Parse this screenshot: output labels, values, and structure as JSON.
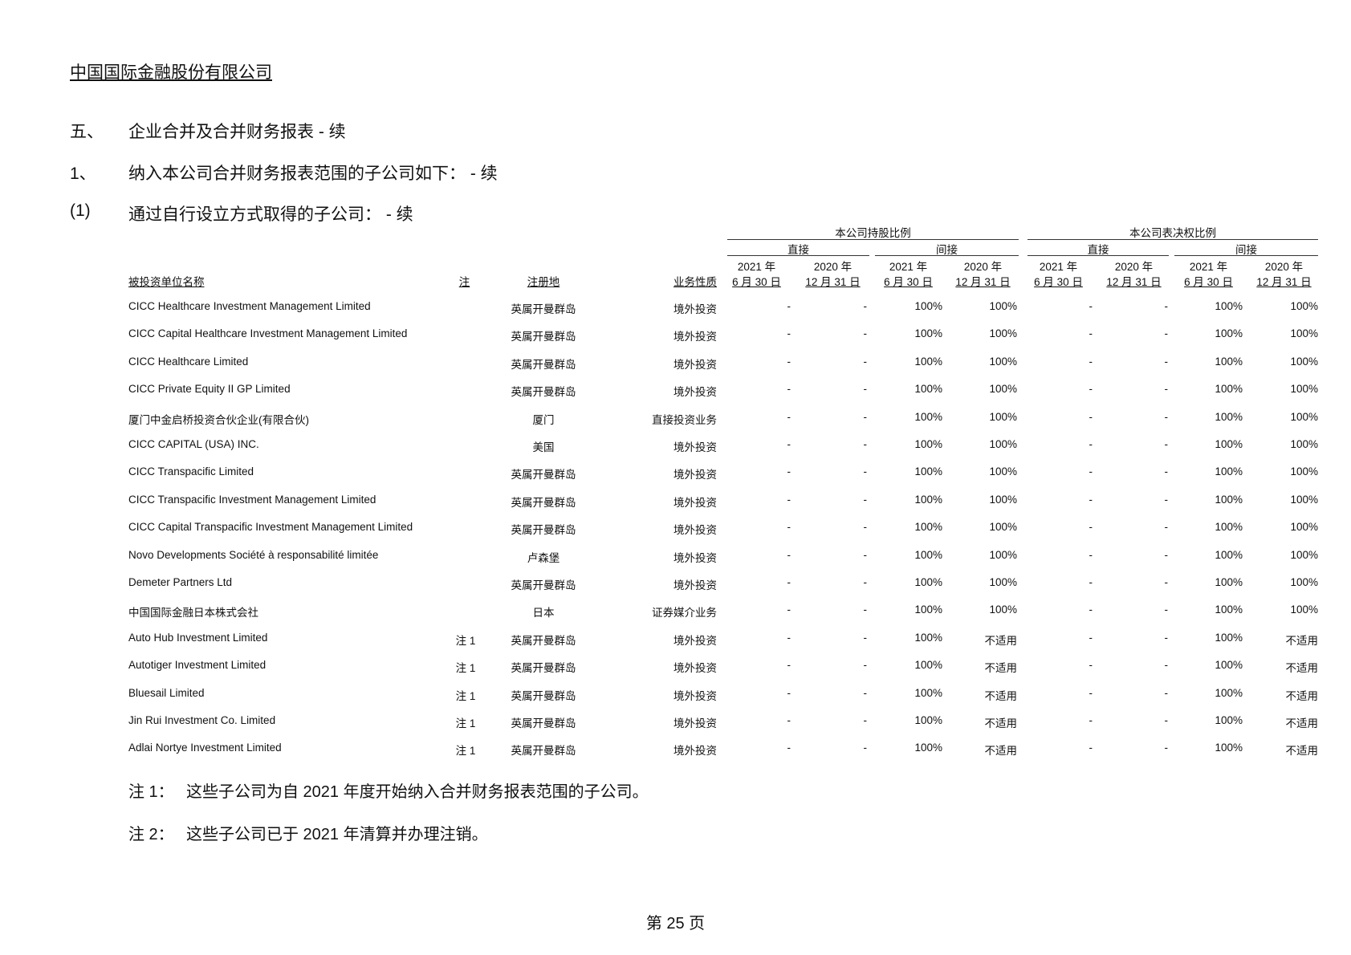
{
  "company": "中国国际金融股份有限公司",
  "sections": [
    {
      "num": "五、",
      "text": "企业合并及合并财务报表 - 续"
    },
    {
      "num": "1、",
      "text": "纳入本公司合并财务报表范围的子公司如下： - 续"
    },
    {
      "num": "(1)",
      "text": "通过自行设立方式取得的子公司： - 续"
    }
  ],
  "table": {
    "group_headers": [
      "本公司持股比例",
      "本公司表决权比例"
    ],
    "sub_headers": [
      "直接",
      "间接",
      "直接",
      "间接"
    ],
    "date_headers": [
      {
        "year": "2021 年",
        "date": "6 月 30 日"
      },
      {
        "year": "2020 年",
        "date": "12 月 31 日"
      },
      {
        "year": "2021 年",
        "date": "6 月 30 日"
      },
      {
        "year": "2020 年",
        "date": "12 月 31 日"
      },
      {
        "year": "2021 年",
        "date": "6 月 30 日"
      },
      {
        "year": "2020 年",
        "date": "12 月 31 日"
      },
      {
        "year": "2021 年",
        "date": "6 月 30 日"
      },
      {
        "year": "2020 年",
        "date": "12 月 31 日"
      }
    ],
    "col_name": "被投资单位名称",
    "col_note": "注",
    "col_place": "注册地",
    "col_business": "业务性质",
    "rows": [
      {
        "name": "CICC Healthcare Investment Management Limited",
        "note": "",
        "place": "英属开曼群岛",
        "business": "境外投资",
        "values": [
          "-",
          "-",
          "100%",
          "100%",
          "-",
          "-",
          "100%",
          "100%"
        ]
      },
      {
        "name": "CICC Capital Healthcare Investment Management Limited",
        "note": "",
        "place": "英属开曼群岛",
        "business": "境外投资",
        "values": [
          "-",
          "-",
          "100%",
          "100%",
          "-",
          "-",
          "100%",
          "100%"
        ]
      },
      {
        "name": "CICC Healthcare Limited",
        "note": "",
        "place": "英属开曼群岛",
        "business": "境外投资",
        "values": [
          "-",
          "-",
          "100%",
          "100%",
          "-",
          "-",
          "100%",
          "100%"
        ]
      },
      {
        "name": "CICC Private Equity II GP Limited",
        "note": "",
        "place": "英属开曼群岛",
        "business": "境外投资",
        "values": [
          "-",
          "-",
          "100%",
          "100%",
          "-",
          "-",
          "100%",
          "100%"
        ]
      },
      {
        "name": "厦门中金启桥投资合伙企业(有限合伙)",
        "note": "",
        "place": "厦门",
        "business": "直接投资业务",
        "values": [
          "-",
          "-",
          "100%",
          "100%",
          "-",
          "-",
          "100%",
          "100%"
        ]
      },
      {
        "name": "CICC CAPITAL (USA) INC.",
        "note": "",
        "place": "美国",
        "business": "境外投资",
        "values": [
          "-",
          "-",
          "100%",
          "100%",
          "-",
          "-",
          "100%",
          "100%"
        ]
      },
      {
        "name": "CICC Transpacific Limited",
        "note": "",
        "place": "英属开曼群岛",
        "business": "境外投资",
        "values": [
          "-",
          "-",
          "100%",
          "100%",
          "-",
          "-",
          "100%",
          "100%"
        ]
      },
      {
        "name": "CICC Transpacific Investment Management Limited",
        "note": "",
        "place": "英属开曼群岛",
        "business": "境外投资",
        "values": [
          "-",
          "-",
          "100%",
          "100%",
          "-",
          "-",
          "100%",
          "100%"
        ]
      },
      {
        "name": "CICC Capital Transpacific Investment Management Limited",
        "note": "",
        "place": "英属开曼群岛",
        "business": "境外投资",
        "values": [
          "-",
          "-",
          "100%",
          "100%",
          "-",
          "-",
          "100%",
          "100%"
        ]
      },
      {
        "name": "Novo Developments Société à responsabilité limitée",
        "note": "",
        "place": "卢森堡",
        "business": "境外投资",
        "values": [
          "-",
          "-",
          "100%",
          "100%",
          "-",
          "-",
          "100%",
          "100%"
        ]
      },
      {
        "name": "Demeter Partners Ltd",
        "note": "",
        "place": "英属开曼群岛",
        "business": "境外投资",
        "values": [
          "-",
          "-",
          "100%",
          "100%",
          "-",
          "-",
          "100%",
          "100%"
        ]
      },
      {
        "name": "中国国际金融日本株式会社",
        "note": "",
        "place": "日本",
        "business": "证券媒介业务",
        "values": [
          "-",
          "-",
          "100%",
          "100%",
          "-",
          "-",
          "100%",
          "100%"
        ]
      },
      {
        "name": "Auto Hub Investment Limited",
        "note": "注 1",
        "place": "英属开曼群岛",
        "business": "境外投资",
        "values": [
          "-",
          "-",
          "100%",
          "不适用",
          "-",
          "-",
          "100%",
          "不适用"
        ]
      },
      {
        "name": "Autotiger Investment Limited",
        "note": "注 1",
        "place": "英属开曼群岛",
        "business": "境外投资",
        "values": [
          "-",
          "-",
          "100%",
          "不适用",
          "-",
          "-",
          "100%",
          "不适用"
        ]
      },
      {
        "name": "Bluesail Limited",
        "note": "注 1",
        "place": "英属开曼群岛",
        "business": "境外投资",
        "values": [
          "-",
          "-",
          "100%",
          "不适用",
          "-",
          "-",
          "100%",
          "不适用"
        ]
      },
      {
        "name": "Jin Rui Investment Co. Limited",
        "note": "注 1",
        "place": "英属开曼群岛",
        "business": "境外投资",
        "values": [
          "-",
          "-",
          "100%",
          "不适用",
          "-",
          "-",
          "100%",
          "不适用"
        ]
      },
      {
        "name": "Adlai Nortye Investment Limited",
        "note": "注 1",
        "place": "英属开曼群岛",
        "business": "境外投资",
        "values": [
          "-",
          "-",
          "100%",
          "不适用",
          "-",
          "-",
          "100%",
          "不适用"
        ]
      }
    ]
  },
  "notes": [
    {
      "label": "注 1：",
      "text": "这些子公司为自 2021 年度开始纳入合并财务报表范围的子公司。"
    },
    {
      "label": "注 2：",
      "text": "这些子公司已于 2021 年清算并办理注销。"
    }
  ],
  "page_number": "第 25 页"
}
